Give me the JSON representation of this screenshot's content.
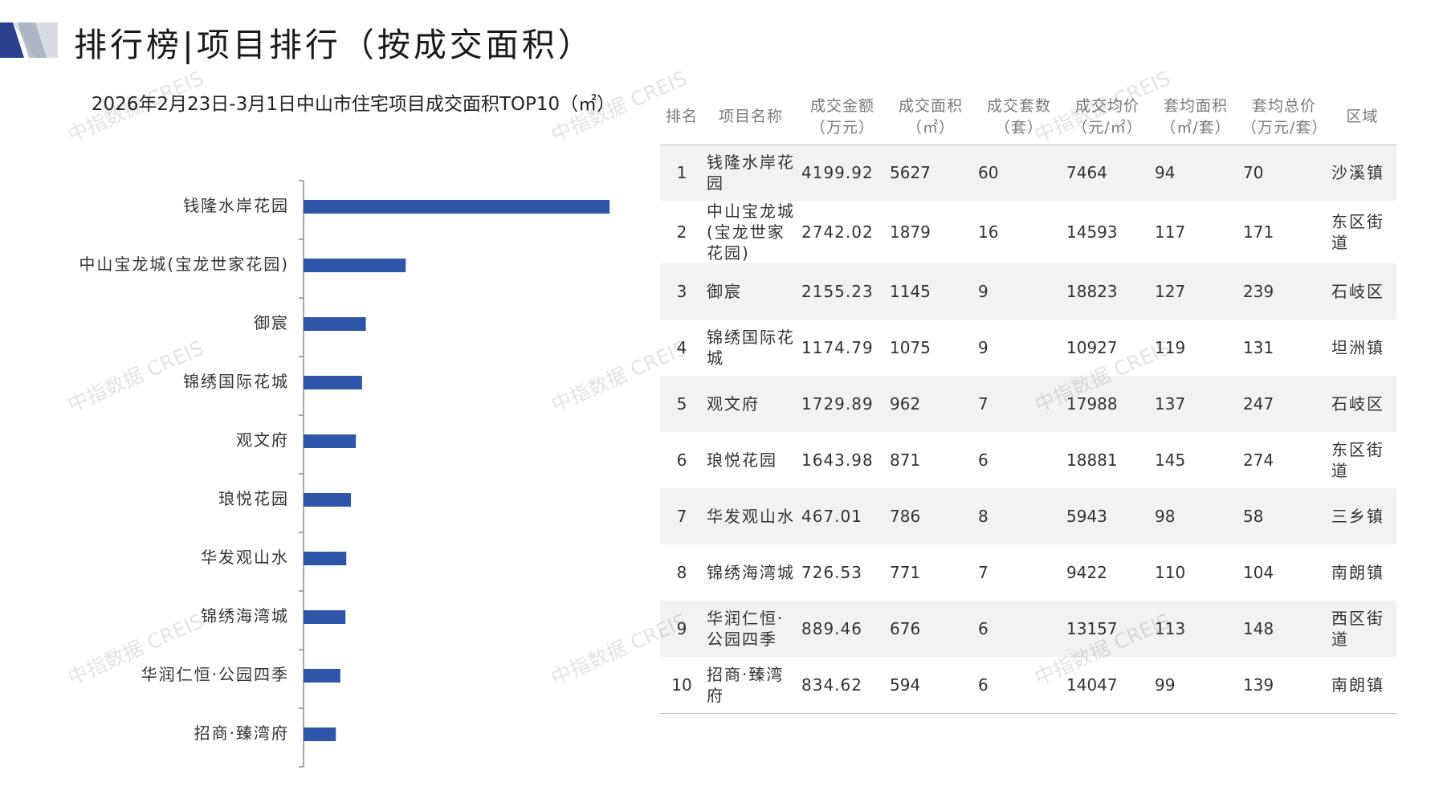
{
  "page": {
    "title": "排行榜|项目排行（按成交面积）",
    "chart_title": "2026年2月23日-3月1日中山市住宅项目成交面积TOP10（㎡）",
    "watermark": "中指数据 CREIS"
  },
  "colors": {
    "bar": "#2e56a8",
    "deco_dark": "#2b3f8f",
    "deco_light": "#d9dde3",
    "row_stripe": "#f2f2f2"
  },
  "chart_data": {
    "type": "bar",
    "orientation": "horizontal",
    "title": "2026年2月23日-3月1日中山市住宅项目成交面积TOP10（㎡）",
    "categories": [
      "钱隆水岸花园",
      "中山宝龙城(宝龙世家花园)",
      "御宸",
      "锦绣国际花城",
      "观文府",
      "琅悦花园",
      "华发观山水",
      "锦绣海湾城",
      "华润仁恒·公园四季",
      "招商·臻湾府"
    ],
    "values": [
      5627,
      1879,
      1145,
      1075,
      962,
      871,
      786,
      771,
      676,
      594
    ],
    "xlim": [
      0,
      6200
    ],
    "grid": false,
    "legend": "none"
  },
  "table": {
    "headers": [
      "排名",
      "项目名称",
      "成交金额\n（万元）",
      "成交面积\n（㎡）",
      "成交套数\n（套）",
      "成交均价\n（元/㎡）",
      "套均面积\n（㎡/套）",
      "套均总价\n（万元/套）",
      "区域"
    ],
    "rows": [
      [
        "1",
        "钱隆水岸花园",
        "4199.92",
        "5627",
        "60",
        "7464",
        "94",
        "70",
        "沙溪镇"
      ],
      [
        "2",
        "中山宝龙城(宝龙世家花园)",
        "2742.02",
        "1879",
        "16",
        "14593",
        "117",
        "171",
        "东区街道"
      ],
      [
        "3",
        "御宸",
        "2155.23",
        "1145",
        "9",
        "18823",
        "127",
        "239",
        "石岐区"
      ],
      [
        "4",
        "锦绣国际花城",
        "1174.79",
        "1075",
        "9",
        "10927",
        "119",
        "131",
        "坦洲镇"
      ],
      [
        "5",
        "观文府",
        "1729.89",
        "962",
        "7",
        "17988",
        "137",
        "247",
        "石岐区"
      ],
      [
        "6",
        "琅悦花园",
        "1643.98",
        "871",
        "6",
        "18881",
        "145",
        "274",
        "东区街道"
      ],
      [
        "7",
        "华发观山水",
        "467.01",
        "786",
        "8",
        "5943",
        "98",
        "58",
        "三乡镇"
      ],
      [
        "8",
        "锦绣海湾城",
        "726.53",
        "771",
        "7",
        "9422",
        "110",
        "104",
        "南朗镇"
      ],
      [
        "9",
        "华润仁恒·公园四季",
        "889.46",
        "676",
        "6",
        "13157",
        "113",
        "148",
        "西区街道"
      ],
      [
        "10",
        "招商·臻湾府",
        "834.62",
        "594",
        "6",
        "14047",
        "99",
        "139",
        "南朗镇"
      ]
    ]
  }
}
